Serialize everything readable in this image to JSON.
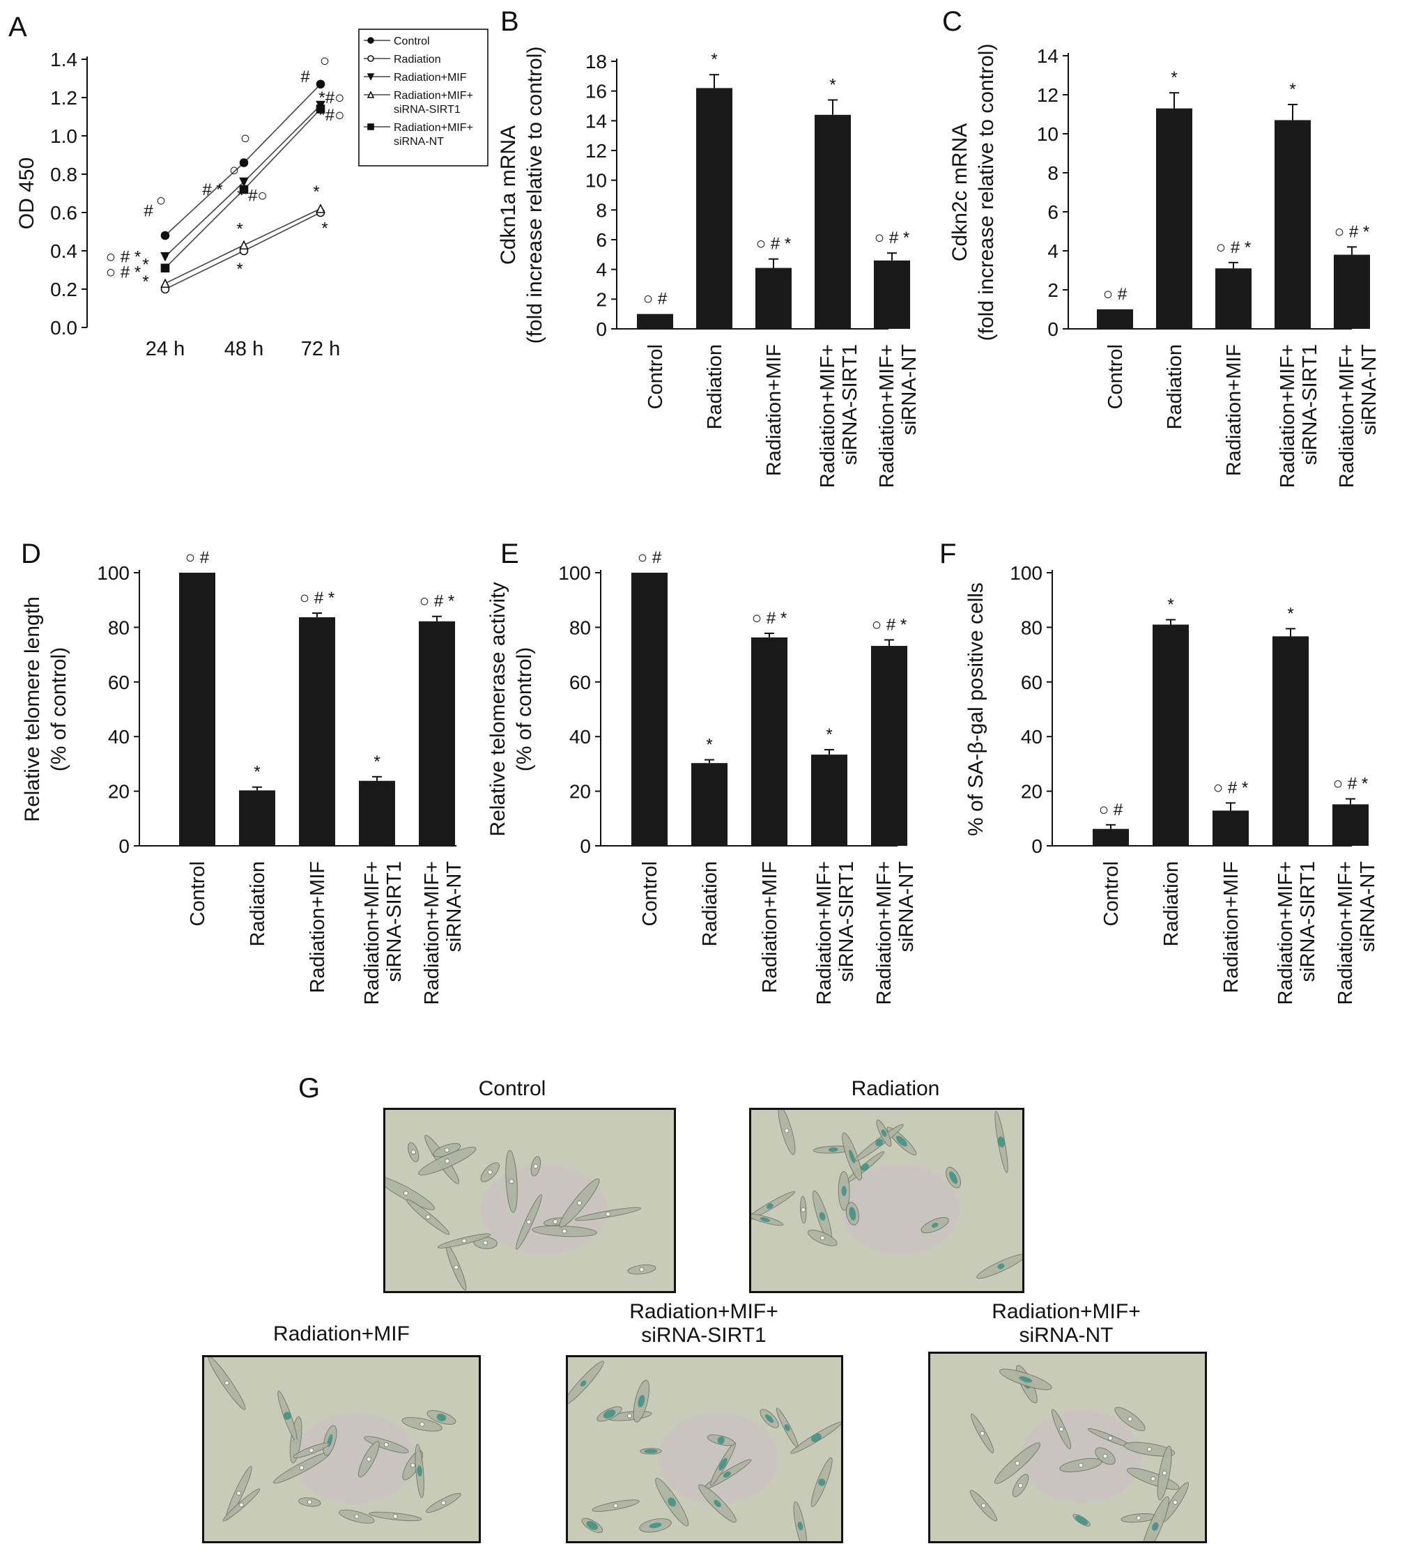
{
  "panels": [
    {
      "letter": "A"
    },
    {
      "letter": "B"
    },
    {
      "letter": "C"
    },
    {
      "letter": "D"
    },
    {
      "letter": "E"
    },
    {
      "letter": "F"
    },
    {
      "letter": "G"
    }
  ],
  "sig_marks": {
    "circle": "○",
    "hash": "#",
    "star": "*"
  },
  "chart_data": [
    {
      "panel": "A",
      "type": "line",
      "ylabel": "OD 450",
      "xlabel": "",
      "categories": [
        "24 h",
        "48 h",
        "72 h"
      ],
      "ylim": [
        0.0,
        1.4
      ],
      "yticks": [
        "0.0",
        "0.2",
        "0.4",
        "0.6",
        "0.8",
        "1.0",
        "1.2",
        "1.4"
      ],
      "legend_position": "top-right",
      "series": [
        {
          "name": "Control",
          "marker": "filled-circle",
          "values": [
            0.48,
            0.86,
            1.27
          ],
          "errors": [
            0.01,
            0.01,
            0.01
          ]
        },
        {
          "name": "Radiation",
          "marker": "open-circle",
          "values": [
            0.2,
            0.4,
            0.6
          ],
          "errors": [
            0.01,
            0.02,
            0.02
          ]
        },
        {
          "name": "Radiation+MIF",
          "marker": "filled-triangle",
          "values": [
            0.37,
            0.76,
            1.16
          ],
          "errors": [
            0.02,
            0.02,
            0.01
          ]
        },
        {
          "name": "Radiation+MIF+\nsiRNA-SIRT1",
          "marker": "open-triangle",
          "values": [
            0.23,
            0.43,
            0.62
          ],
          "errors": [
            0.02,
            0.02,
            0.02
          ]
        },
        {
          "name": "Radiation+MIF+\nsiRNA-NT",
          "marker": "filled-square",
          "values": [
            0.31,
            0.72,
            1.14
          ],
          "errors": [
            0.02,
            0.02,
            0.01
          ]
        }
      ],
      "annotations": [
        {
          "text": "#",
          "x": "24 h",
          "y": 0.61
        },
        {
          "text": "○",
          "x": "24 h",
          "y": 0.62
        },
        {
          "text": "○ # *",
          "x": "24 h",
          "y": 0.37
        },
        {
          "text": "*",
          "x": "24 h",
          "y": 0.33
        },
        {
          "text": "○ # *",
          "x": "24 h",
          "y": 0.29
        },
        {
          "text": "*",
          "x": "24 h",
          "y": 0.24
        },
        {
          "text": "○",
          "x": "48 h",
          "y": 0.96
        },
        {
          "text": "○",
          "x": "48 h",
          "y": 0.8
        },
        {
          "text": "# *",
          "x": "48 h",
          "y": 0.72
        },
        {
          "text": "* #○",
          "x": "48 h",
          "y": 0.69
        },
        {
          "text": "*",
          "x": "48 h",
          "y": 0.5
        },
        {
          "text": "*",
          "x": "48 h",
          "y": 0.32
        },
        {
          "text": "#",
          "x": "72 h",
          "y": 1.31
        },
        {
          "text": "○",
          "x": "72 h",
          "y": 1.35
        },
        {
          "text": "*#○",
          "x": "72 h",
          "y": 1.2
        },
        {
          "text": "*#○",
          "x": "72 h",
          "y": 1.11
        },
        {
          "text": "*",
          "x": "72 h",
          "y": 0.71
        },
        {
          "text": "*",
          "x": "72 h",
          "y": 0.54
        }
      ]
    },
    {
      "panel": "B",
      "type": "bar",
      "ylabel": "Cdkn1a mRNA\n(fold increase relative to control)",
      "categories": [
        "Control",
        "Radiation",
        "Radiation+MIF",
        "Radiation+MIF+\nsiRNA-SIRT1",
        "Radiation+MIF+\nsiRNA-NT"
      ],
      "values": [
        1.0,
        16.2,
        4.1,
        14.4,
        4.6
      ],
      "errors": [
        0.0,
        0.9,
        0.6,
        1.0,
        0.5
      ],
      "marks": [
        "○ #",
        "*",
        "○ # *",
        "*",
        "○ # *"
      ],
      "ylim": [
        0,
        18
      ],
      "yticks": [
        "0",
        "2",
        "4",
        "6",
        "8",
        "10",
        "12",
        "14",
        "16",
        "18"
      ]
    },
    {
      "panel": "C",
      "type": "bar",
      "ylabel": "Cdkn2c mRNA\n(fold increase relative to control)",
      "categories": [
        "Control",
        "Radiation",
        "Radiation+MIF",
        "Radiation+MIF+\nsiRNA-SIRT1",
        "Radiation+MIF+\nsiRNA-NT"
      ],
      "values": [
        1.0,
        11.3,
        3.1,
        10.7,
        3.8
      ],
      "errors": [
        0.0,
        0.8,
        0.3,
        0.8,
        0.4
      ],
      "marks": [
        "○ #",
        "*",
        "○ # *",
        "*",
        "○ # *"
      ],
      "ylim": [
        0,
        14
      ],
      "yticks": [
        "0",
        "2",
        "4",
        "6",
        "8",
        "10",
        "12",
        "14"
      ]
    },
    {
      "panel": "D",
      "type": "bar",
      "ylabel": "Relative telomere length\n(% of control)",
      "categories": [
        "Control",
        "Radiation",
        "Radiation+MIF",
        "Radiation+MIF+\nsiRNA-SIRT1",
        "Radiation+MIF+\nsiRNA-NT"
      ],
      "values": [
        100,
        20.3,
        83.7,
        23.8,
        82.2
      ],
      "errors": [
        0,
        1.2,
        1.5,
        1.5,
        1.8
      ],
      "marks": [
        "○ #",
        "*",
        "○ # *",
        "*",
        "○ # *"
      ],
      "ylim": [
        0,
        100
      ],
      "yticks": [
        "0",
        "20",
        "40",
        "60",
        "80",
        "100"
      ]
    },
    {
      "panel": "E",
      "type": "bar",
      "ylabel": "Relative telomerase activity\n(% of control)",
      "categories": [
        "Control",
        "Radiation",
        "Radiation+MIF",
        "Radiation+MIF+\nsiRNA-SIRT1",
        "Radiation+MIF+\nsiRNA-NT"
      ],
      "values": [
        100,
        30.3,
        76.3,
        33.4,
        73.2
      ],
      "errors": [
        0,
        1.2,
        1.5,
        1.8,
        2.2
      ],
      "marks": [
        "○ #",
        "*",
        "○ # *",
        "*",
        "○ # *"
      ],
      "ylim": [
        0,
        100
      ],
      "yticks": [
        "0",
        "20",
        "40",
        "60",
        "80",
        "100"
      ]
    },
    {
      "panel": "F",
      "type": "bar",
      "ylabel": "% of SA-β-gal positive cells",
      "categories": [
        "Control",
        "Radiation",
        "Radiation+MIF",
        "Radiation+MIF+\nsiRNA-SIRT1",
        "Radiation+MIF+\nsiRNA-NT"
      ],
      "values": [
        6.2,
        81.0,
        12.9,
        76.7,
        15.2
      ],
      "errors": [
        1.5,
        1.8,
        2.8,
        2.8,
        2.0
      ],
      "marks": [
        "○ #",
        "*",
        "○ # *",
        "*",
        "○ # *"
      ],
      "ylim": [
        0,
        100
      ],
      "yticks": [
        "0",
        "20",
        "40",
        "60",
        "80",
        "100"
      ]
    }
  ],
  "micrographs": {
    "panel": "G",
    "labels": [
      "Control",
      "Radiation",
      "Radiation+MIF",
      "Radiation+MIF+\nsiRNA-SIRT1",
      "Radiation+MIF+\nsiRNA-NT"
    ]
  },
  "colors": {
    "bar": "#1a1a1a",
    "ink": "#111111",
    "stain": "#3e8f86",
    "field": "#c8cbb8"
  }
}
